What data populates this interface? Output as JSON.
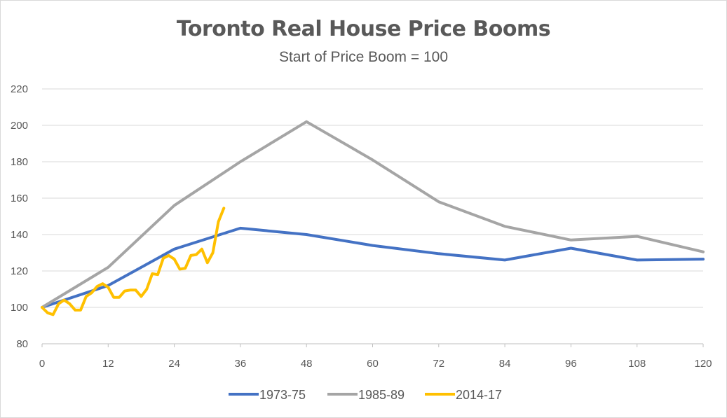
{
  "chart_data": {
    "type": "line",
    "title": "Toronto Real House Price Booms",
    "subtitle": "Start of Price Boom = 100",
    "xlim": [
      0,
      120
    ],
    "ylim": [
      80,
      220
    ],
    "x_ticks": [
      "0",
      "12",
      "24",
      "36",
      "48",
      "60",
      "72",
      "84",
      "96",
      "108",
      "120"
    ],
    "y_ticks": [
      "80",
      "100",
      "120",
      "140",
      "160",
      "180",
      "200",
      "220"
    ],
    "grid": true,
    "legend_position": "bottom",
    "series": [
      {
        "name": "1973-75",
        "color": "#4472c4",
        "x": [
          0,
          12,
          24,
          36,
          48,
          60,
          72,
          84,
          96,
          108,
          120
        ],
        "y": [
          100,
          112,
          132,
          143.5,
          140,
          134,
          129.5,
          126,
          132.5,
          126,
          126.5
        ]
      },
      {
        "name": "1985-89",
        "color": "#a5a5a5",
        "x": [
          0,
          12,
          24,
          36,
          48,
          60,
          72,
          84,
          96,
          108,
          120
        ],
        "y": [
          100,
          122,
          156,
          180,
          202,
          181,
          158,
          144.5,
          137,
          139,
          130.5
        ]
      },
      {
        "name": "2014-17",
        "color": "#ffc000",
        "x": [
          0,
          1,
          2,
          3,
          4,
          5,
          6,
          7,
          8,
          9,
          10,
          11,
          12,
          13,
          14,
          15,
          16,
          17,
          18,
          19,
          20,
          21,
          22,
          23,
          24,
          25,
          26,
          27,
          28,
          29,
          30,
          31,
          32,
          33
        ],
        "y": [
          100,
          97,
          96,
          102,
          104,
          102,
          98.5,
          98.5,
          106,
          108,
          111.5,
          113,
          111,
          105.5,
          105.5,
          109,
          109.5,
          109.5,
          106,
          110,
          118.5,
          118,
          127,
          128.5,
          126.5,
          121,
          121.5,
          128.5,
          129,
          132,
          124.5,
          130,
          147,
          154.5
        ]
      }
    ]
  }
}
